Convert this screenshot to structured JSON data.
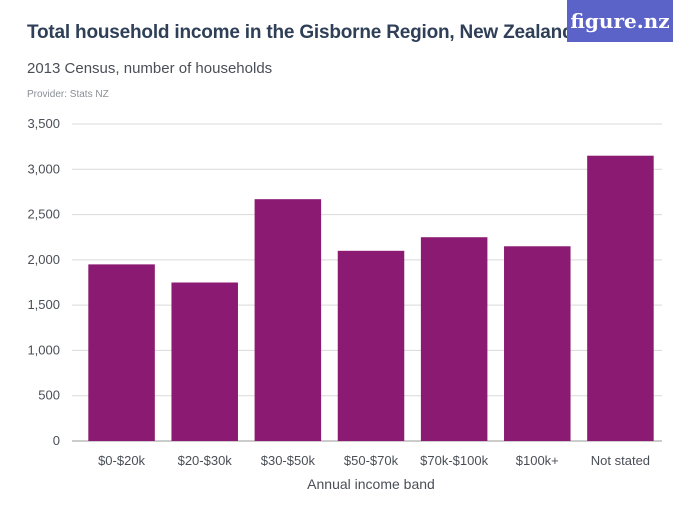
{
  "header": {
    "title": "Total household income in the Gisborne Region, New Zealand",
    "subtitle": "2013 Census, number of households",
    "provider": "Provider: Stats NZ",
    "logo": "figure.nz"
  },
  "colors": {
    "bar": "#8b1a73",
    "grid": "#d9d9d9",
    "title": "#2e3f57",
    "logo_bg": "#5b63c9"
  },
  "chart_data": {
    "type": "bar",
    "categories": [
      "$0-$20k",
      "$20-$30k",
      "$30-$50k",
      "$50-$70k",
      "$70k-$100k",
      "$100k+",
      "Not stated"
    ],
    "values": [
      1950,
      1750,
      2670,
      2100,
      2250,
      2150,
      3150
    ],
    "xlabel": "Annual income band",
    "ylabel": "",
    "ylim": [
      0,
      3500
    ],
    "yticks": [
      0,
      500,
      1000,
      1500,
      2000,
      2500,
      3000,
      3500
    ],
    "ytick_labels": [
      "0",
      "500",
      "1,000",
      "1,500",
      "2,000",
      "2,500",
      "3,000",
      "3,500"
    ],
    "grid": true,
    "legend": "none"
  }
}
